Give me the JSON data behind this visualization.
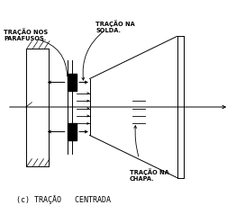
{
  "title": "(c) TRAÇÃO   CENTRADA",
  "label_bolts": "TRAÇÃO NOS\nPARAFUSOS.",
  "label_weld": "TRAÇÃO NA\nSOLDA.",
  "label_plate": "TRAÇÃO NA\nCHAPA.",
  "bg_color": "#ffffff",
  "line_color": "#000000",
  "figsize": [
    2.62,
    2.38
  ],
  "dpi": 100,
  "xlim": [
    0,
    10
  ],
  "ylim": [
    0,
    9
  ]
}
